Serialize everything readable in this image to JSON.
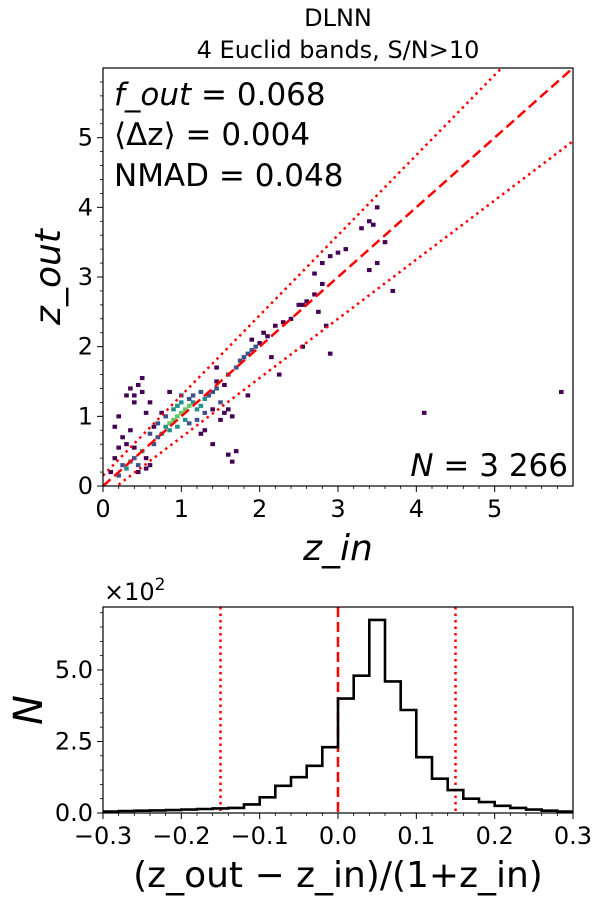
{
  "chart_data": [
    {
      "type": "heatmap",
      "title": "DLNN",
      "subtitle": "4 Euclid bands, S/N>10",
      "xlabel": "z_in",
      "ylabel": "z_out",
      "xlim": [
        0,
        6
      ],
      "ylim": [
        0,
        6
      ],
      "xticks": [
        "0",
        "1",
        "2",
        "3",
        "4",
        "5"
      ],
      "yticks": [
        "0",
        "1",
        "2",
        "3",
        "4",
        "5"
      ],
      "stats": {
        "fout_label": "f_out",
        "fout_value": "0.068",
        "dz_label": "⟨Δz⟩",
        "dz_value": "0.004",
        "nmad_label": "NMAD",
        "nmad_value": "0.048",
        "n_label": "N",
        "n_value": "3 266"
      },
      "lines": [
        {
          "name": "one-to-one",
          "style": "dashed",
          "color": "#ff0000",
          "slope": 1.0
        },
        {
          "name": "outlier-upper",
          "style": "dotted",
          "color": "#ff0000",
          "slope": 1.15,
          "offset": 0.15
        },
        {
          "name": "outlier-lower",
          "style": "dotted",
          "color": "#ff0000",
          "slope": 0.85,
          "offset": -0.15
        }
      ],
      "cells": [
        [
          0.2,
          0.15,
          2
        ],
        [
          0.25,
          0.3,
          2
        ],
        [
          0.3,
          0.25,
          3
        ],
        [
          0.35,
          0.35,
          3
        ],
        [
          0.4,
          0.4,
          2
        ],
        [
          0.45,
          0.3,
          2
        ],
        [
          0.5,
          0.5,
          3
        ],
        [
          0.15,
          0.4,
          1
        ],
        [
          0.1,
          0.2,
          1
        ],
        [
          0.3,
          0.6,
          1
        ],
        [
          0.2,
          0.55,
          1
        ],
        [
          0.35,
          0.8,
          1
        ],
        [
          0.25,
          0.7,
          1
        ],
        [
          0.45,
          0.2,
          1
        ],
        [
          0.55,
          0.25,
          1
        ],
        [
          0.6,
          0.3,
          1
        ],
        [
          0.4,
          0.55,
          1
        ],
        [
          0.15,
          0.85,
          1
        ],
        [
          0.3,
          1.3,
          1
        ],
        [
          0.35,
          1.4,
          1
        ],
        [
          0.4,
          1.3,
          1
        ],
        [
          0.45,
          1.45,
          1
        ],
        [
          0.5,
          1.35,
          1
        ],
        [
          0.4,
          1.2,
          1
        ],
        [
          0.55,
          0.4,
          1
        ],
        [
          0.65,
          0.6,
          2
        ],
        [
          0.7,
          0.7,
          2
        ],
        [
          0.75,
          0.75,
          3
        ],
        [
          0.8,
          0.85,
          3
        ],
        [
          0.85,
          0.9,
          4
        ],
        [
          0.9,
          0.95,
          4
        ],
        [
          0.95,
          1.0,
          4
        ],
        [
          1.0,
          1.05,
          4
        ],
        [
          1.05,
          1.1,
          4
        ],
        [
          1.1,
          1.15,
          4
        ],
        [
          1.15,
          1.2,
          3
        ],
        [
          1.2,
          1.1,
          3
        ],
        [
          1.25,
          1.15,
          3
        ],
        [
          1.3,
          1.25,
          3
        ],
        [
          1.35,
          1.3,
          2
        ],
        [
          1.4,
          1.35,
          2
        ],
        [
          1.45,
          1.4,
          2
        ],
        [
          0.9,
          1.1,
          3
        ],
        [
          0.95,
          1.15,
          3
        ],
        [
          1.0,
          1.2,
          3
        ],
        [
          0.85,
          0.8,
          3
        ],
        [
          0.95,
          0.85,
          3
        ],
        [
          1.05,
          0.95,
          3
        ],
        [
          1.1,
          0.9,
          2
        ],
        [
          0.8,
          1.0,
          2
        ],
        [
          0.7,
          0.9,
          2
        ],
        [
          0.6,
          0.75,
          2
        ],
        [
          0.65,
          0.85,
          1
        ],
        [
          0.75,
          1.05,
          1
        ],
        [
          1.15,
          1.3,
          2
        ],
        [
          1.25,
          1.35,
          2
        ],
        [
          1.1,
          1.25,
          2
        ],
        [
          1.0,
          1.3,
          2
        ],
        [
          1.2,
          0.95,
          2
        ],
        [
          1.3,
          1.05,
          2
        ],
        [
          1.4,
          1.1,
          1
        ],
        [
          1.5,
          1.2,
          2
        ],
        [
          1.5,
          0.95,
          1
        ],
        [
          1.55,
          1.05,
          1
        ],
        [
          1.6,
          1.1,
          1
        ],
        [
          1.65,
          1.0,
          1
        ],
        [
          1.6,
          0.45,
          1
        ],
        [
          1.7,
          0.5,
          1
        ],
        [
          1.65,
          0.35,
          1
        ],
        [
          1.25,
          0.75,
          1
        ],
        [
          1.3,
          0.8,
          1
        ],
        [
          1.4,
          0.6,
          1
        ],
        [
          1.45,
          1.5,
          1
        ],
        [
          1.55,
          1.45,
          1
        ],
        [
          1.6,
          1.6,
          2
        ],
        [
          1.7,
          1.7,
          2
        ],
        [
          1.75,
          1.8,
          2
        ],
        [
          1.8,
          1.85,
          2
        ],
        [
          1.85,
          1.9,
          2
        ],
        [
          1.9,
          1.95,
          2
        ],
        [
          1.95,
          2.0,
          2
        ],
        [
          2.0,
          2.05,
          1
        ],
        [
          1.9,
          2.1,
          1
        ],
        [
          2.05,
          2.2,
          1
        ],
        [
          2.1,
          2.15,
          1
        ],
        [
          2.2,
          2.3,
          1
        ],
        [
          2.3,
          2.35,
          1
        ],
        [
          2.4,
          2.4,
          1
        ],
        [
          2.5,
          2.6,
          1
        ],
        [
          2.55,
          2.6,
          1
        ],
        [
          2.6,
          2.65,
          1
        ],
        [
          2.7,
          2.75,
          1
        ],
        [
          2.8,
          2.9,
          1
        ],
        [
          2.85,
          2.3,
          1
        ],
        [
          2.55,
          2.0,
          1
        ],
        [
          2.9,
          1.9,
          1
        ],
        [
          2.7,
          3.05,
          1
        ],
        [
          2.8,
          3.2,
          1
        ],
        [
          2.9,
          3.3,
          1
        ],
        [
          3.0,
          3.35,
          1
        ],
        [
          3.1,
          3.4,
          1
        ],
        [
          3.3,
          3.7,
          1
        ],
        [
          3.4,
          3.8,
          1
        ],
        [
          3.45,
          3.75,
          1
        ],
        [
          3.5,
          4.0,
          1
        ],
        [
          3.4,
          3.1,
          1
        ],
        [
          3.6,
          3.5,
          1
        ],
        [
          3.5,
          3.2,
          1
        ],
        [
          3.7,
          2.8,
          1
        ],
        [
          2.75,
          2.5,
          1
        ],
        [
          2.15,
          1.85,
          1
        ],
        [
          2.25,
          1.6,
          1
        ],
        [
          1.45,
          1.7,
          1
        ],
        [
          1.85,
          1.3,
          1
        ],
        [
          0.85,
          1.35,
          1
        ],
        [
          0.5,
          1.55,
          1
        ],
        [
          0.2,
          1.0,
          1
        ],
        [
          0.55,
          1.05,
          1
        ],
        [
          0.6,
          1.2,
          1
        ],
        [
          4.1,
          1.05,
          1
        ],
        [
          5.85,
          1.35,
          1
        ]
      ]
    },
    {
      "type": "bar",
      "subtype": "histogram",
      "xlabel": "(z_out − z_in)/(1+z_in)",
      "ylabel": "N",
      "multiplier": "×10",
      "multiplier_exp": "2",
      "xlim": [
        -0.3,
        0.3
      ],
      "ylim": [
        0,
        7.2
      ],
      "xticks": [
        "−0.3",
        "−0.2",
        "−0.1",
        "0.0",
        "0.1",
        "0.2",
        "0.3"
      ],
      "yticks": [
        "0.0",
        "2.5",
        "5.0"
      ],
      "bin_width": 0.02,
      "bin_starts": [
        -0.3,
        -0.28,
        -0.26,
        -0.24,
        -0.22,
        -0.2,
        -0.18,
        -0.16,
        -0.14,
        -0.12,
        -0.1,
        -0.08,
        -0.06,
        -0.04,
        -0.02,
        0.0,
        0.02,
        0.04,
        0.06,
        0.08,
        0.1,
        0.12,
        0.14,
        0.16,
        0.18,
        0.2,
        0.22,
        0.24,
        0.26,
        0.28
      ],
      "values": [
        0.05,
        0.07,
        0.08,
        0.09,
        0.1,
        0.12,
        0.14,
        0.16,
        0.18,
        0.3,
        0.55,
        0.95,
        1.25,
        1.65,
        2.3,
        4.0,
        4.8,
        6.75,
        4.6,
        3.6,
        1.95,
        1.2,
        0.8,
        0.5,
        0.38,
        0.25,
        0.18,
        0.12,
        0.08,
        0.05
      ],
      "vlines": [
        {
          "x": 0.0,
          "style": "dashed",
          "color": "#ff0000"
        },
        {
          "x": -0.15,
          "style": "dotted",
          "color": "#ff0000"
        },
        {
          "x": 0.15,
          "style": "dotted",
          "color": "#ff0000"
        }
      ]
    }
  ]
}
